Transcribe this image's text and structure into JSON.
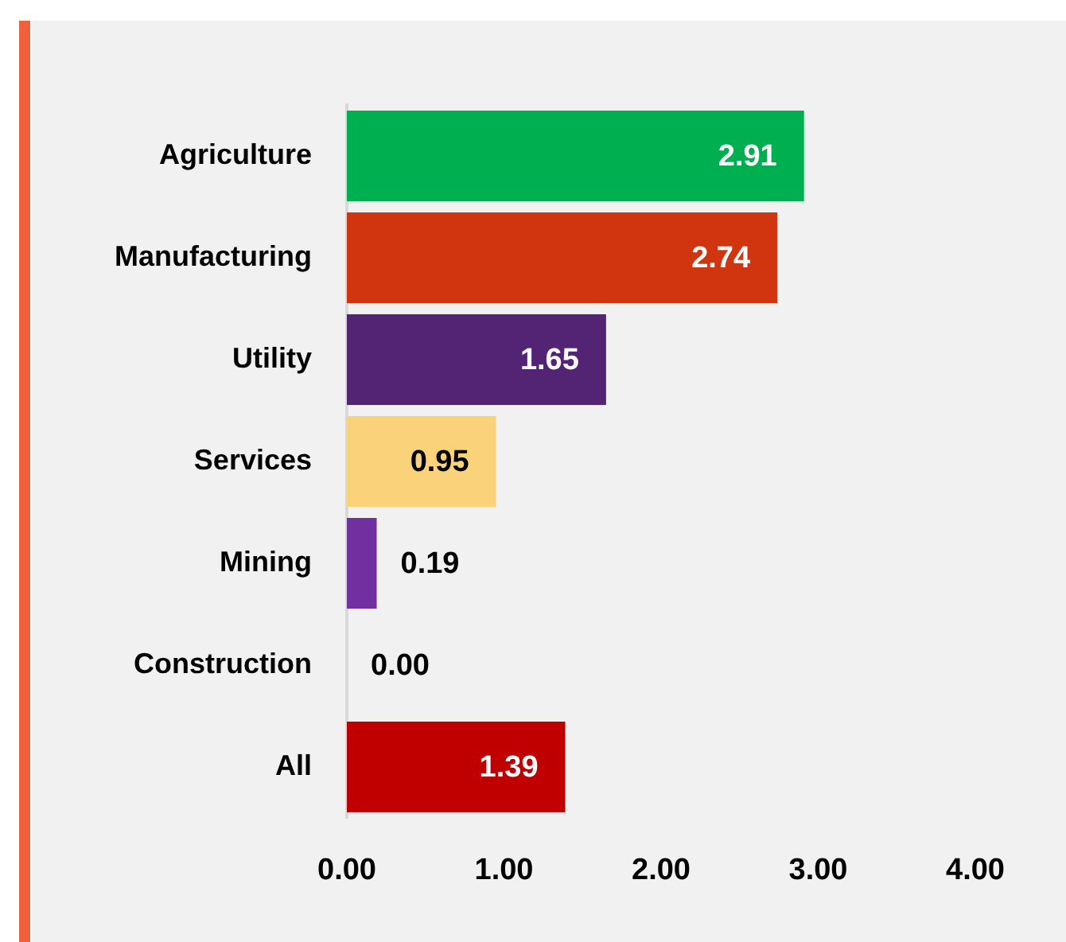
{
  "chart_data": {
    "type": "bar",
    "orientation": "horizontal",
    "categories": [
      "Agriculture",
      "Manufacturing",
      "Utility",
      "Services",
      "Mining",
      "Construction",
      "All"
    ],
    "values": [
      2.91,
      2.74,
      1.65,
      0.95,
      0.19,
      0.0,
      1.39
    ],
    "colors": [
      "#00b050",
      "#d03510",
      "#542474",
      "#fad27a",
      "#7030a0",
      "#7f7f7f",
      "#c00000"
    ],
    "xlim": [
      0,
      4
    ],
    "xticks": [
      {
        "value": 0,
        "label": "0.00"
      },
      {
        "value": 1,
        "label": "1.00"
      },
      {
        "value": 2,
        "label": "2.00"
      },
      {
        "value": 3,
        "label": "3.00"
      },
      {
        "value": 4,
        "label": "4.00"
      }
    ],
    "value_labels": [
      "2.91",
      "2.74",
      "1.65",
      "0.95",
      "0.19",
      "0.00",
      "1.39"
    ],
    "grid": false,
    "legend": false
  }
}
